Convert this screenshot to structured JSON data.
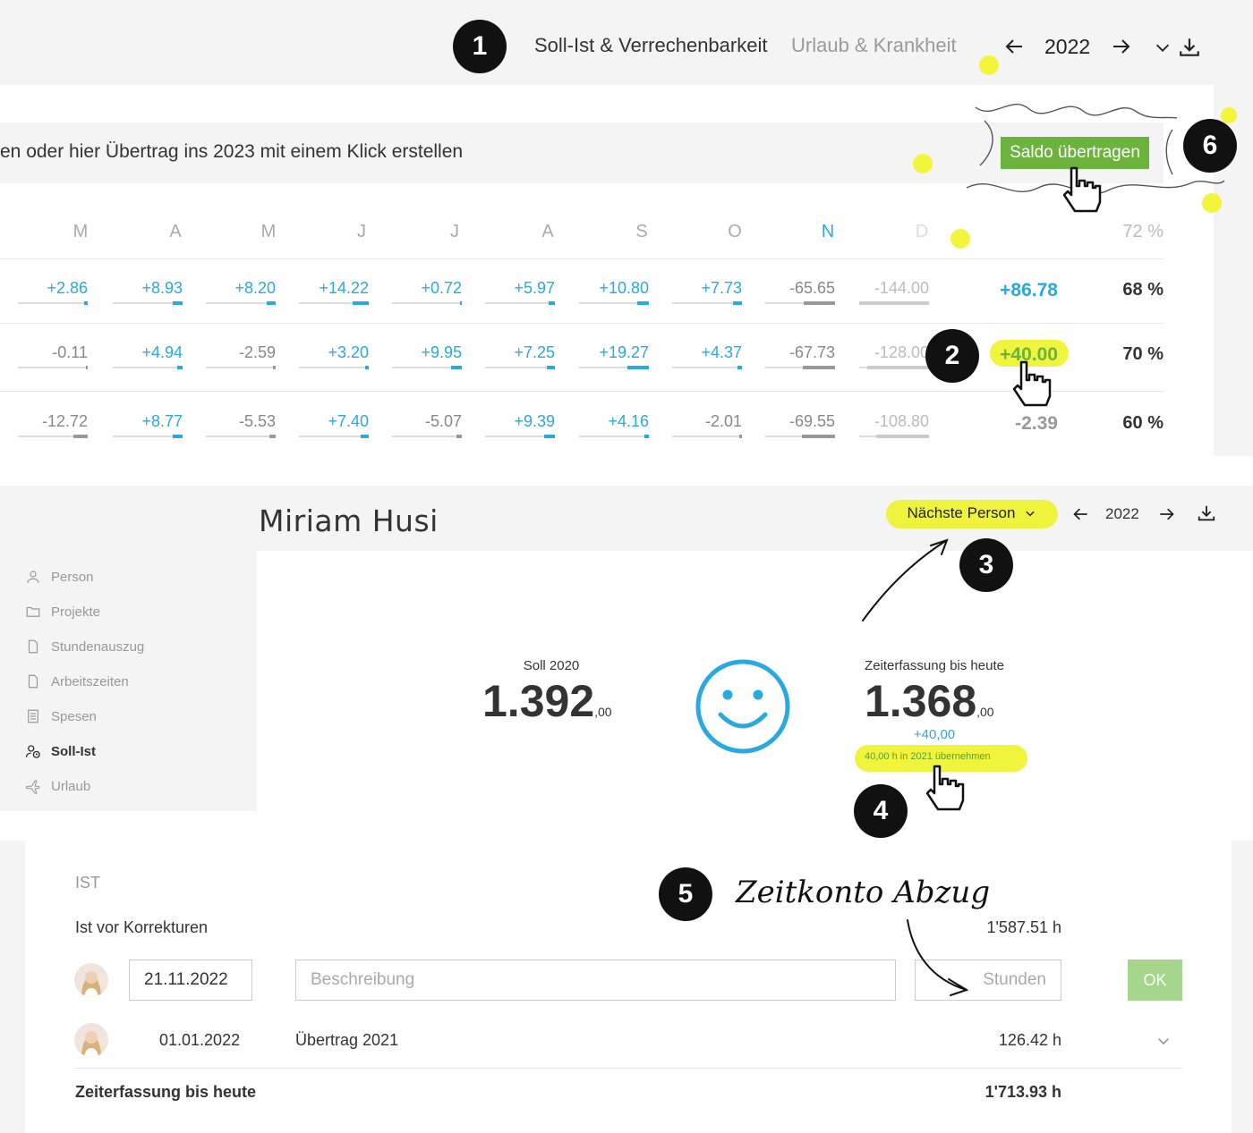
{
  "panel1": {
    "tabs": [
      {
        "label": "Soll-Ist & Verrechenbarkeit"
      },
      {
        "label": "Urlaub & Krankheit"
      }
    ],
    "year": "2022",
    "banner_text": "en oder hier Übertrag ins 2023 mit einem Klick erstellen",
    "saldo_button": "Saldo übertragen",
    "months": [
      "M",
      "A",
      "M",
      "J",
      "J",
      "A",
      "S",
      "O",
      "N",
      "D"
    ],
    "percent_header": "72 %",
    "rows": [
      {
        "values": [
          "+2.86",
          "+8.93",
          "+8.20",
          "+14.22",
          "+0.72",
          "+5.97",
          "+10.80",
          "+7.73",
          "-65.65",
          "-144.00"
        ],
        "total": "+86.78",
        "percent": "68 %"
      },
      {
        "values": [
          "-0.11",
          "+4.94",
          "-2.59",
          "+3.20",
          "+9.95",
          "+7.25",
          "+19.27",
          "+4.37",
          "-67.73",
          "-128.00"
        ],
        "total": "+40.00",
        "percent": "70 %"
      },
      {
        "values": [
          "-12.72",
          "+8.77",
          "-5.53",
          "+7.40",
          "-5.07",
          "+9.39",
          "+4.16",
          "-2.01",
          "-69.55",
          "-108.80"
        ],
        "total": "-2.39",
        "percent": "60 %"
      }
    ]
  },
  "panel2": {
    "person_name": "Miriam Husi",
    "next_person": "Nächste Person",
    "year": "2022",
    "sidebar": [
      {
        "label": "Person"
      },
      {
        "label": "Projekte"
      },
      {
        "label": "Stundenauszug"
      },
      {
        "label": "Arbeitszeiten"
      },
      {
        "label": "Spesen"
      },
      {
        "label": "Soll-Ist"
      },
      {
        "label": "Urlaub"
      }
    ],
    "soll_label": "Soll 2020",
    "soll_value": "1.392",
    "soll_decimals": ",00",
    "ist_label": "Zeiterfassung bis heute",
    "ist_value": "1.368",
    "ist_decimals": ",00",
    "delta": "+40,00",
    "transfer_link": "40,00 h in 2021 übernehmen"
  },
  "panel3": {
    "section_title": "IST",
    "before_corrections_label": "Ist vor Korrekturen",
    "before_corrections_value": "1'587.51 h",
    "date_input": "21.11.2022",
    "description_placeholder": "Beschreibung",
    "hours_placeholder": "Stunden",
    "ok_button": "OK",
    "entry_date": "01.01.2022",
    "entry_desc": "Übertrag 2021",
    "entry_hours": "126.42 h",
    "total_label": "Zeiterfassung bis heute",
    "total_value": "1'713.93 h"
  },
  "annotations": {
    "badges": [
      "1",
      "2",
      "3",
      "4",
      "5",
      "6"
    ],
    "handwritten_note": "Zeitkonto Abzug"
  },
  "colors": {
    "accent_blue": "#29a9e1",
    "green": "#6cb33e",
    "highlight": "#eef21a"
  }
}
